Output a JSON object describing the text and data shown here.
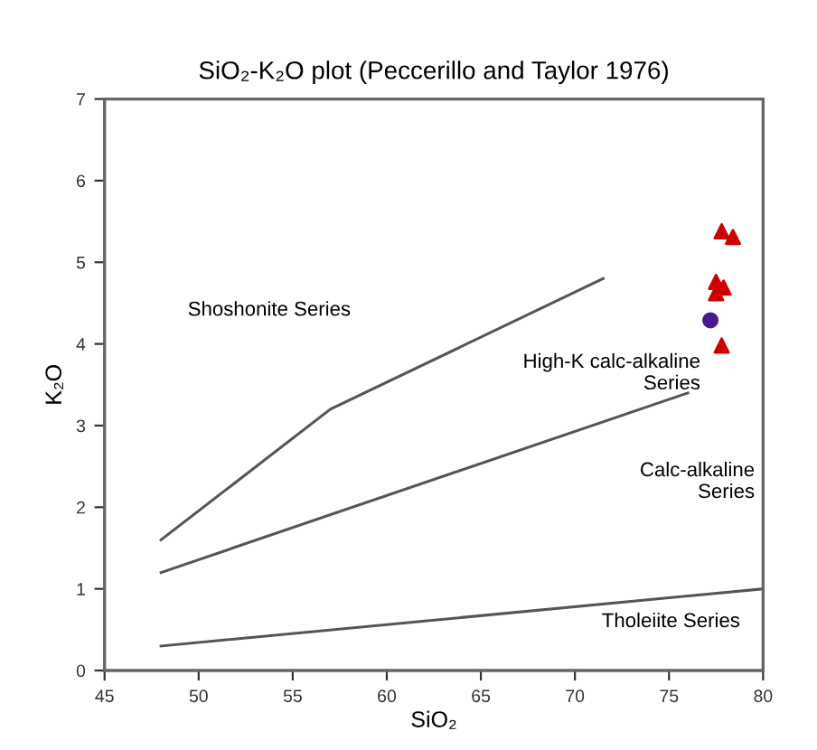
{
  "chart_data": {
    "type": "scatter",
    "title": "SiO₂-K₂O plot (Peccerillo and Taylor 1976)",
    "xlabel": "SiO₂",
    "ylabel": "K₂O",
    "xlim": [
      45,
      80
    ],
    "ylim": [
      0,
      7
    ],
    "xticks": [
      45,
      50,
      55,
      60,
      65,
      70,
      75,
      80
    ],
    "yticks": [
      0,
      1,
      2,
      3,
      4,
      5,
      6,
      7
    ],
    "grid": false,
    "series": [
      {
        "type": "line",
        "color": "#555555",
        "x": [
          48,
          80
        ],
        "values": [
          0.3,
          1.0
        ],
        "marker": "none"
      },
      {
        "type": "line",
        "color": "#555555",
        "x": [
          48,
          76
        ],
        "values": [
          1.2,
          3.4
        ],
        "marker": "none"
      },
      {
        "type": "line",
        "color": "#555555",
        "x": [
          48,
          57,
          71.5
        ],
        "values": [
          1.6,
          3.2,
          4.8
        ],
        "marker": "none"
      },
      {
        "color": "#cc0000",
        "x": [
          77.8,
          78.4,
          77.5,
          77.9,
          77.5,
          77.8
        ],
        "values": [
          5.38,
          5.31,
          4.76,
          4.69,
          4.62,
          3.98
        ],
        "marker": "triangle"
      },
      {
        "color": "#4b1a8a",
        "x": [
          77.2
        ],
        "values": [
          4.29
        ],
        "marker": "circle"
      }
    ],
    "annotations": [
      "Shoshonite Series",
      "High-K calc-alkaline\nSeries",
      "Calc-alkaline\nSeries",
      "Tholeiite Series"
    ]
  }
}
